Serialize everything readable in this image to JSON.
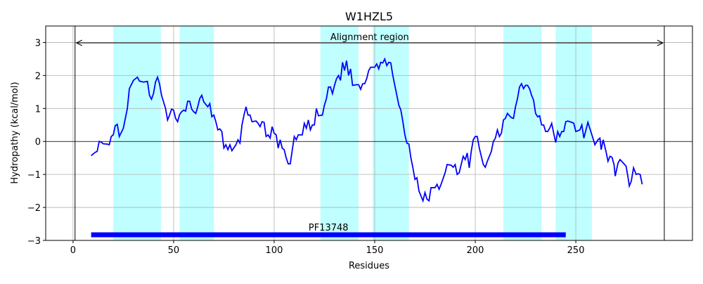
{
  "chart_data": {
    "type": "line",
    "title": "W1HZL5",
    "x_label": "Residues",
    "y_label": "Hydropathy (kcal/mol)",
    "x": [
      9,
      11,
      12,
      13,
      14,
      15,
      17,
      18,
      19,
      20,
      21,
      22,
      23,
      25,
      27,
      28,
      30,
      32,
      33,
      35,
      37,
      38,
      39,
      40,
      41,
      42,
      43,
      44,
      46,
      47,
      48,
      49,
      50,
      51,
      52,
      53,
      54,
      55,
      56,
      57,
      58,
      59,
      60,
      61,
      62,
      63,
      64,
      65,
      67,
      68,
      69,
      70,
      71,
      72,
      73,
      74,
      75,
      76,
      77,
      78,
      79,
      81,
      82,
      83,
      84,
      85,
      86,
      87,
      88,
      89,
      91,
      92,
      93,
      94,
      95,
      96,
      97,
      98,
      99,
      100,
      101,
      102,
      103,
      104,
      105,
      106,
      107,
      108,
      110,
      111,
      112,
      114,
      115,
      116,
      117,
      118,
      119,
      120,
      121,
      122,
      124,
      125,
      126,
      127,
      128,
      129,
      130,
      131,
      132,
      133,
      134,
      135,
      136,
      137,
      138,
      139,
      141,
      142,
      143,
      144,
      145,
      146,
      147,
      148,
      150,
      151,
      152,
      153,
      154,
      155,
      156,
      157,
      158,
      159,
      160,
      162,
      163,
      164,
      165,
      166,
      167,
      168,
      169,
      170,
      171,
      172,
      173,
      174,
      175,
      176,
      177,
      178,
      180,
      181,
      182,
      183,
      185,
      186,
      188,
      189,
      190,
      191,
      192,
      194,
      195,
      196,
      197,
      198,
      199,
      200,
      201,
      202,
      203,
      204,
      205,
      206,
      208,
      209,
      210,
      211,
      212,
      213,
      214,
      215,
      216,
      217,
      218,
      219,
      220,
      221,
      222,
      223,
      224,
      225,
      226,
      227,
      228,
      229,
      230,
      231,
      232,
      233,
      234,
      235,
      236,
      237,
      238,
      239,
      240,
      241,
      242,
      243,
      244,
      245,
      246,
      248,
      249,
      250,
      252,
      253,
      254,
      256,
      258,
      259.5,
      261,
      262,
      262.6,
      263.6,
      265,
      266,
      267,
      268,
      269,
      269.6,
      271,
      272,
      274,
      275,
      276,
      276.6,
      277.6,
      278.7,
      280,
      281,
      282,
      283
    ],
    "values": [
      -0.43,
      -0.33,
      -0.3,
      0.0,
      -0.02,
      -0.07,
      -0.08,
      -0.1,
      0.15,
      0.2,
      0.48,
      0.52,
      0.15,
      0.4,
      1.0,
      1.6,
      1.85,
      1.95,
      1.83,
      1.8,
      1.82,
      1.4,
      1.28,
      1.45,
      1.8,
      1.95,
      1.75,
      1.4,
      1.0,
      0.65,
      0.8,
      0.98,
      0.95,
      0.7,
      0.6,
      0.82,
      0.9,
      0.95,
      0.92,
      1.22,
      1.22,
      0.98,
      0.9,
      0.85,
      1.05,
      1.3,
      1.4,
      1.2,
      1.05,
      1.15,
      0.75,
      0.8,
      0.6,
      0.35,
      0.38,
      0.3,
      -0.2,
      -0.1,
      -0.25,
      -0.1,
      -0.28,
      -0.1,
      0.05,
      -0.05,
      0.5,
      0.8,
      1.05,
      0.8,
      0.8,
      0.6,
      0.62,
      0.55,
      0.45,
      0.6,
      0.58,
      0.15,
      0.2,
      0.1,
      0.45,
      0.25,
      0.2,
      -0.2,
      0.05,
      -0.2,
      -0.25,
      -0.5,
      -0.68,
      -0.68,
      0.15,
      0.05,
      0.2,
      0.2,
      0.55,
      0.4,
      0.65,
      0.35,
      0.5,
      0.5,
      1.0,
      0.78,
      0.8,
      1.1,
      1.3,
      1.65,
      1.65,
      1.45,
      1.7,
      1.9,
      2.0,
      1.85,
      2.4,
      2.15,
      2.45,
      2.0,
      2.2,
      1.7,
      1.72,
      1.72,
      1.58,
      1.75,
      1.75,
      1.9,
      2.15,
      2.25,
      2.25,
      2.35,
      2.2,
      2.4,
      2.38,
      2.5,
      2.3,
      2.4,
      2.38,
      2.0,
      1.7,
      1.1,
      0.95,
      0.6,
      0.2,
      -0.05,
      -0.08,
      -0.5,
      -0.8,
      -1.15,
      -1.1,
      -1.5,
      -1.65,
      -1.8,
      -1.55,
      -1.75,
      -1.8,
      -1.4,
      -1.4,
      -1.3,
      -1.45,
      -1.3,
      -0.95,
      -0.7,
      -0.72,
      -0.78,
      -0.7,
      -1.0,
      -0.95,
      -0.45,
      -0.55,
      -0.35,
      -0.8,
      -0.3,
      0.05,
      0.15,
      0.15,
      -0.2,
      -0.45,
      -0.7,
      -0.78,
      -0.6,
      -0.3,
      0.0,
      0.1,
      0.35,
      0.15,
      0.25,
      0.65,
      0.7,
      0.85,
      0.78,
      0.72,
      0.7,
      1.05,
      1.3,
      1.65,
      1.75,
      1.6,
      1.7,
      1.7,
      1.6,
      1.4,
      1.25,
      0.85,
      0.75,
      0.78,
      0.5,
      0.5,
      0.3,
      0.3,
      0.4,
      0.55,
      0.25,
      -0.03,
      0.3,
      0.15,
      0.3,
      0.3,
      0.6,
      0.62,
      0.58,
      0.55,
      0.3,
      0.35,
      0.5,
      0.1,
      0.58,
      0.2,
      -0.1,
      0.05,
      0.1,
      -0.25,
      0.05,
      -0.3,
      -0.6,
      -0.45,
      -0.48,
      -0.7,
      -1.05,
      -0.65,
      -0.55,
      -0.68,
      -0.75,
      -1.1,
      -1.35,
      -1.2,
      -0.8,
      -1.0,
      -0.98,
      -1.0,
      -1.3
    ],
    "color": "#0000ff",
    "regions": [
      [
        20,
        43.7
      ],
      [
        53,
        70
      ],
      [
        123,
        142
      ],
      [
        149,
        167
      ],
      [
        214,
        233
      ],
      [
        240,
        258
      ]
    ],
    "region_color": "#bfffff",
    "alignment_region": {
      "label": "Alignment region",
      "start": 1,
      "end": 294
    },
    "domains": [
      {
        "label": "PF13748",
        "start": 9,
        "end": 245,
        "y": -2.83,
        "color": "#0000ff"
      }
    ],
    "hline": 0,
    "xlim": [
      -13.6,
      308
    ],
    "ylim": [
      -3,
      3.5
    ],
    "xticks": [
      0,
      50,
      100,
      150,
      200,
      250
    ],
    "yticks": [
      {
        "value": -3,
        "label": "−3"
      },
      {
        "value": -2,
        "label": "−2"
      },
      {
        "value": -1,
        "label": "−1"
      },
      0,
      1,
      2,
      3
    ],
    "grid": true
  }
}
